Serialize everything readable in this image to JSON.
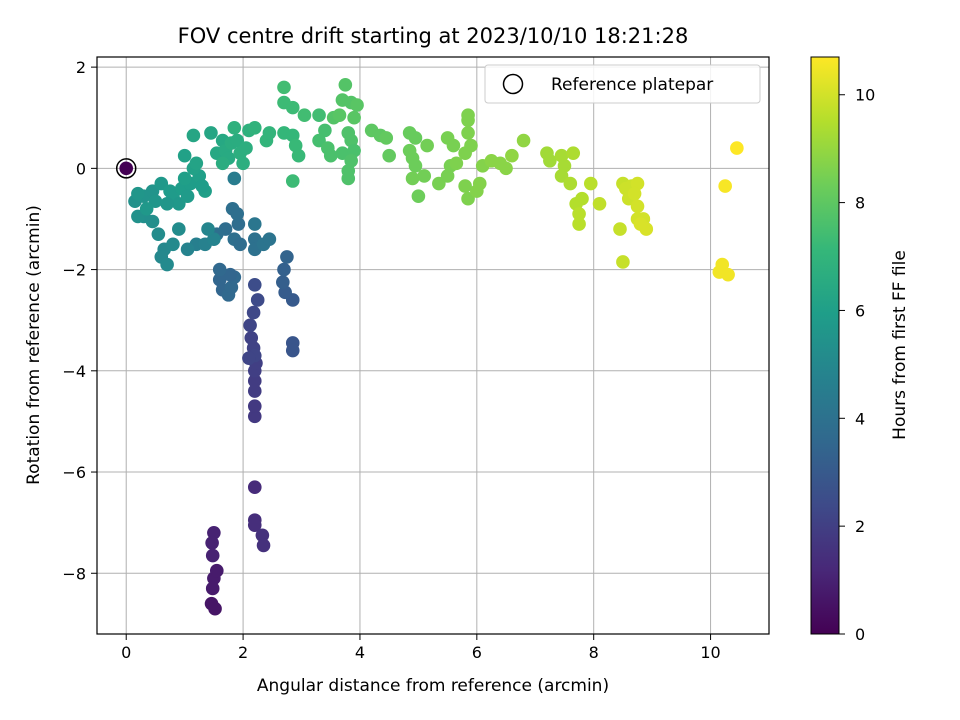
{
  "chart_data": {
    "type": "scatter",
    "title": "FOV centre drift starting at 2023/10/10 18:21:28",
    "xlabel": "Angular distance from reference (arcmin)",
    "ylabel": "Rotation from reference (arcmin)",
    "colorbar_label": "Hours from first FF file",
    "xlim": [
      -0.5,
      11.0
    ],
    "ylim": [
      -9.2,
      2.2
    ],
    "xticks": [
      "0",
      "2",
      "4",
      "6",
      "8",
      "10"
    ],
    "yticks": [
      "2",
      "0",
      "−2",
      "−4",
      "−6",
      "−8"
    ],
    "colorbar_ticks": [
      "0",
      "2",
      "4",
      "6",
      "8",
      "10"
    ],
    "colorbar_range": [
      0,
      10.7
    ],
    "grid": true,
    "colormap": "viridis",
    "legend": {
      "placement": "top-right",
      "entries": [
        "Reference platepar"
      ]
    },
    "reference_point": {
      "x": 0,
      "y": 0,
      "hours": 0
    },
    "points": [
      [
        1.5,
        -7.2,
        1.0
      ],
      [
        1.47,
        -7.4,
        1.0
      ],
      [
        1.48,
        -7.65,
        1.0
      ],
      [
        1.5,
        -8.1,
        0.8
      ],
      [
        1.48,
        -8.3,
        0.8
      ],
      [
        1.46,
        -8.6,
        0.6
      ],
      [
        1.52,
        -8.7,
        0.6
      ],
      [
        1.55,
        -7.95,
        0.8
      ],
      [
        2.2,
        -6.3,
        1.3
      ],
      [
        2.2,
        -6.95,
        1.4
      ],
      [
        2.2,
        -7.05,
        1.4
      ],
      [
        2.33,
        -7.25,
        1.5
      ],
      [
        2.35,
        -7.45,
        1.5
      ],
      [
        2.2,
        -4.9,
        1.8
      ],
      [
        2.2,
        -4.7,
        1.8
      ],
      [
        2.2,
        -4.4,
        1.9
      ],
      [
        2.2,
        -4.2,
        1.9
      ],
      [
        2.2,
        -4.0,
        2.0
      ],
      [
        2.22,
        -3.85,
        2.0
      ],
      [
        2.18,
        -3.55,
        2.1
      ],
      [
        2.14,
        -3.35,
        2.1
      ],
      [
        2.12,
        -3.1,
        2.2
      ],
      [
        2.18,
        -2.85,
        2.3
      ],
      [
        2.2,
        -3.7,
        2.2
      ],
      [
        2.1,
        -3.75,
        2.2
      ],
      [
        2.25,
        -2.6,
        2.4
      ],
      [
        2.2,
        -2.3,
        2.5
      ],
      [
        2.85,
        -3.45,
        2.8
      ],
      [
        2.85,
        -3.6,
        2.8
      ],
      [
        2.85,
        -2.6,
        3.0
      ],
      [
        2.72,
        -2.45,
        3.1
      ],
      [
        2.68,
        -2.25,
        3.2
      ],
      [
        2.7,
        -2.0,
        3.3
      ],
      [
        2.75,
        -1.75,
        3.4
      ],
      [
        1.6,
        -2.2,
        3.5
      ],
      [
        1.65,
        -2.4,
        3.5
      ],
      [
        1.75,
        -2.5,
        3.6
      ],
      [
        1.8,
        -2.35,
        3.6
      ],
      [
        1.85,
        -2.15,
        3.6
      ],
      [
        1.78,
        -2.1,
        3.5
      ],
      [
        1.6,
        -2.0,
        3.6
      ],
      [
        1.7,
        -1.2,
        3.8
      ],
      [
        1.55,
        -1.3,
        3.9
      ],
      [
        1.92,
        -1.1,
        3.8
      ],
      [
        1.82,
        -0.8,
        3.9
      ],
      [
        1.9,
        -0.9,
        3.9
      ],
      [
        1.85,
        -1.4,
        3.9
      ],
      [
        1.95,
        -1.5,
        3.8
      ],
      [
        2.2,
        -1.4,
        4.0
      ],
      [
        2.2,
        -1.6,
        4.0
      ],
      [
        2.35,
        -1.5,
        4.1
      ],
      [
        2.45,
        -1.4,
        4.1
      ],
      [
        2.2,
        -1.1,
        4.2
      ],
      [
        1.85,
        -0.2,
        4.5
      ],
      [
        1.2,
        -1.5,
        4.6
      ],
      [
        1.35,
        -1.5,
        4.7
      ],
      [
        1.5,
        -1.4,
        4.8
      ],
      [
        1.05,
        -1.6,
        4.8
      ],
      [
        1.4,
        -1.2,
        4.9
      ],
      [
        0.65,
        -1.6,
        5.0
      ],
      [
        0.6,
        -1.75,
        5.0
      ],
      [
        0.7,
        -1.9,
        5.1
      ],
      [
        0.8,
        -1.5,
        5.1
      ],
      [
        0.55,
        -1.3,
        5.2
      ],
      [
        0.9,
        -1.2,
        5.2
      ],
      [
        0.3,
        -0.95,
        5.3
      ],
      [
        0.45,
        -1.05,
        5.3
      ],
      [
        0.2,
        -0.95,
        5.4
      ],
      [
        0.15,
        -0.65,
        5.4
      ],
      [
        0.3,
        -0.55,
        5.5
      ],
      [
        0.45,
        -0.45,
        5.5
      ],
      [
        0.5,
        -0.65,
        5.6
      ],
      [
        0.2,
        -0.5,
        5.6
      ],
      [
        0.35,
        -0.8,
        5.7
      ],
      [
        0.6,
        -0.3,
        5.7
      ],
      [
        0.75,
        -0.45,
        5.8
      ],
      [
        0.8,
        -0.55,
        5.8
      ],
      [
        0.95,
        -0.4,
        5.9
      ],
      [
        1.1,
        -0.3,
        5.9
      ],
      [
        1.25,
        -0.15,
        6.0
      ],
      [
        1.35,
        -0.45,
        6.0
      ],
      [
        1.0,
        -0.2,
        6.0
      ],
      [
        1.15,
        0.0,
        6.1
      ],
      [
        1.0,
        0.25,
        6.1
      ],
      [
        1.2,
        0.1,
        6.2
      ],
      [
        0.9,
        -0.7,
        5.7
      ],
      [
        1.05,
        -0.55,
        5.8
      ],
      [
        1.3,
        -0.35,
        5.9
      ],
      [
        0.7,
        -0.7,
        5.6
      ],
      [
        1.15,
        0.65,
        6.3
      ],
      [
        1.45,
        0.7,
        6.3
      ],
      [
        1.55,
        0.3,
        6.4
      ],
      [
        1.65,
        0.55,
        6.4
      ],
      [
        1.7,
        0.35,
        6.5
      ],
      [
        1.75,
        0.2,
        6.5
      ],
      [
        1.8,
        0.5,
        6.6
      ],
      [
        1.9,
        0.55,
        6.6
      ],
      [
        1.95,
        0.3,
        6.7
      ],
      [
        2.05,
        0.4,
        6.7
      ],
      [
        2.0,
        0.1,
        6.7
      ],
      [
        1.85,
        0.8,
        6.8
      ],
      [
        2.1,
        0.75,
        6.8
      ],
      [
        2.2,
        0.8,
        6.9
      ],
      [
        1.65,
        0.1,
        6.6
      ],
      [
        2.4,
        0.55,
        7.0
      ],
      [
        2.45,
        0.7,
        7.0
      ],
      [
        2.7,
        0.7,
        7.1
      ],
      [
        2.85,
        0.65,
        7.1
      ],
      [
        2.9,
        0.45,
        7.2
      ],
      [
        2.95,
        0.25,
        7.2
      ],
      [
        2.85,
        -0.25,
        7.3
      ],
      [
        2.7,
        1.3,
        7.3
      ],
      [
        2.85,
        1.2,
        7.3
      ],
      [
        2.7,
        1.6,
        7.4
      ],
      [
        3.05,
        1.05,
        7.4
      ],
      [
        3.3,
        1.05,
        7.4
      ],
      [
        3.4,
        0.75,
        7.5
      ],
      [
        3.3,
        0.55,
        7.5
      ],
      [
        3.45,
        0.4,
        7.6
      ],
      [
        3.5,
        0.25,
        7.6
      ],
      [
        3.7,
        0.3,
        7.6
      ],
      [
        3.8,
        0.7,
        7.7
      ],
      [
        3.85,
        0.55,
        7.7
      ],
      [
        3.9,
        0.35,
        7.6
      ],
      [
        3.85,
        0.15,
        7.7
      ],
      [
        3.8,
        -0.05,
        7.7
      ],
      [
        3.8,
        -0.2,
        7.7
      ],
      [
        3.55,
        1.0,
        7.8
      ],
      [
        3.7,
        1.35,
        7.8
      ],
      [
        3.75,
        1.65,
        7.8
      ],
      [
        3.85,
        1.3,
        7.8
      ],
      [
        3.95,
        1.25,
        7.9
      ],
      [
        3.9,
        1.0,
        7.9
      ],
      [
        3.65,
        1.05,
        7.9
      ],
      [
        4.2,
        0.75,
        8.0
      ],
      [
        4.35,
        0.65,
        8.0
      ],
      [
        4.45,
        0.6,
        8.1
      ],
      [
        4.5,
        0.25,
        8.1
      ],
      [
        4.85,
        0.7,
        8.2
      ],
      [
        4.95,
        0.6,
        8.2
      ],
      [
        4.85,
        0.35,
        8.3
      ],
      [
        4.9,
        0.2,
        8.3
      ],
      [
        4.95,
        0.05,
        8.3
      ],
      [
        4.9,
        -0.2,
        8.4
      ],
      [
        5.1,
        -0.15,
        8.4
      ],
      [
        5.15,
        0.45,
        8.4
      ],
      [
        5.0,
        -0.55,
        8.3
      ],
      [
        5.35,
        -0.3,
        8.5
      ],
      [
        5.5,
        -0.15,
        8.5
      ],
      [
        5.55,
        0.05,
        8.5
      ],
      [
        5.65,
        0.1,
        8.6
      ],
      [
        5.8,
        0.3,
        8.6
      ],
      [
        5.5,
        0.6,
        8.5
      ],
      [
        5.6,
        0.45,
        8.5
      ],
      [
        5.85,
        0.7,
        8.6
      ],
      [
        5.85,
        0.95,
        8.6
      ],
      [
        5.85,
        1.05,
        8.6
      ],
      [
        5.9,
        0.45,
        8.6
      ],
      [
        5.8,
        -0.35,
        8.6
      ],
      [
        5.85,
        -0.6,
        8.6
      ],
      [
        6.0,
        -0.45,
        8.7
      ],
      [
        6.05,
        -0.3,
        8.7
      ],
      [
        6.1,
        0.05,
        8.7
      ],
      [
        6.25,
        0.15,
        8.8
      ],
      [
        6.4,
        0.1,
        8.8
      ],
      [
        6.5,
        0.0,
        8.8
      ],
      [
        6.6,
        0.25,
        8.9
      ],
      [
        6.8,
        0.55,
        8.9
      ],
      [
        7.2,
        0.3,
        9.2
      ],
      [
        7.25,
        0.15,
        9.2
      ],
      [
        7.45,
        0.25,
        9.3
      ],
      [
        7.5,
        0.05,
        9.3
      ],
      [
        7.45,
        -0.15,
        9.3
      ],
      [
        7.6,
        -0.3,
        9.4
      ],
      [
        7.65,
        0.3,
        9.4
      ],
      [
        7.7,
        -0.7,
        9.5
      ],
      [
        7.8,
        -0.6,
        9.5
      ],
      [
        7.75,
        -0.9,
        9.6
      ],
      [
        7.75,
        -1.1,
        9.6
      ],
      [
        7.95,
        -0.3,
        9.6
      ],
      [
        8.1,
        -0.7,
        9.7
      ],
      [
        8.45,
        -1.2,
        9.8
      ],
      [
        8.5,
        -1.85,
        9.8
      ],
      [
        8.5,
        -0.3,
        9.8
      ],
      [
        8.55,
        -0.4,
        9.9
      ],
      [
        8.6,
        -0.6,
        9.9
      ],
      [
        8.65,
        -0.35,
        9.9
      ],
      [
        8.75,
        -0.3,
        10.0
      ],
      [
        8.7,
        -0.5,
        10.0
      ],
      [
        8.75,
        -0.75,
        10.0
      ],
      [
        8.75,
        -1.0,
        10.0
      ],
      [
        8.85,
        -1.0,
        10.0
      ],
      [
        8.9,
        -1.2,
        10.1
      ],
      [
        8.8,
        -1.1,
        10.1
      ],
      [
        10.15,
        -2.05,
        10.5
      ],
      [
        10.2,
        -1.9,
        10.5
      ],
      [
        10.3,
        -2.1,
        10.5
      ],
      [
        10.25,
        -0.35,
        10.6
      ],
      [
        10.45,
        0.4,
        10.7
      ]
    ]
  }
}
